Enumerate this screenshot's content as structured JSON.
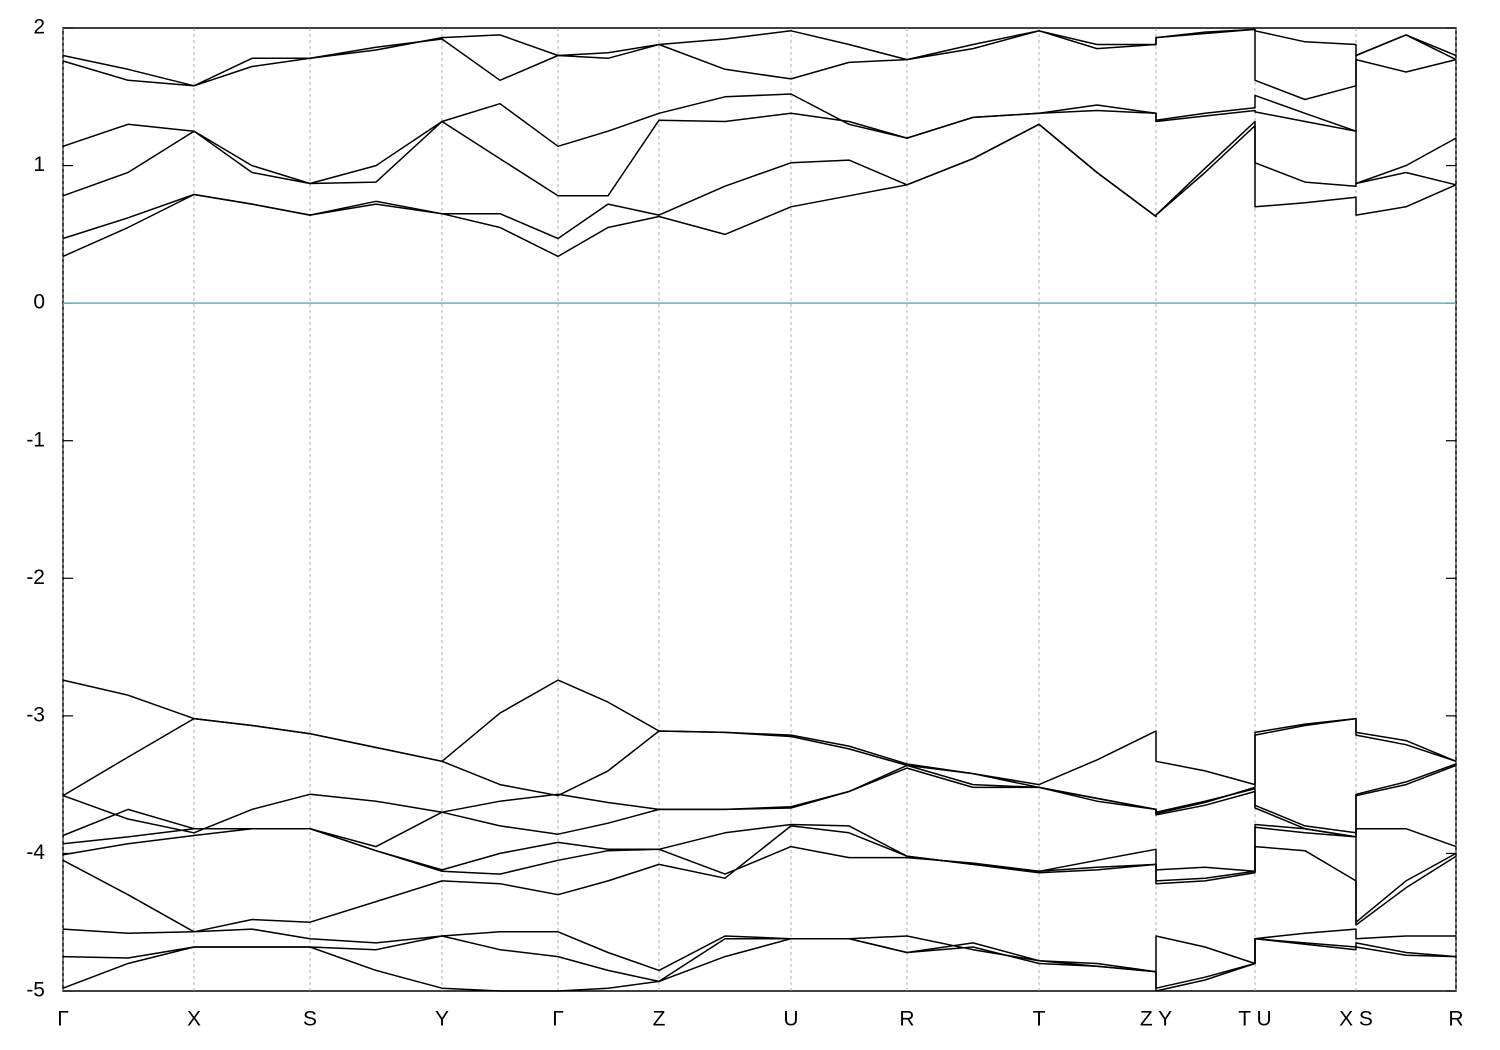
{
  "chart_data": {
    "type": "line",
    "x": [
      0,
      65,
      131,
      189,
      247,
      313,
      379,
      437,
      495,
      545,
      596,
      662,
      728,
      786,
      844,
      910,
      976,
      1034,
      1093,
      1093,
      1142,
      1192,
      1192,
      1242,
      1293,
      1293,
      1343,
      1393
    ],
    "xlim": [
      0,
      1393
    ],
    "xticks": [
      {
        "value": 0,
        "label": "Γ"
      },
      {
        "value": 131,
        "label": "X"
      },
      {
        "value": 247,
        "label": "S"
      },
      {
        "value": 379,
        "label": "Y"
      },
      {
        "value": 495,
        "label": "Γ"
      },
      {
        "value": 596,
        "label": "Z"
      },
      {
        "value": 728,
        "label": "U"
      },
      {
        "value": 844,
        "label": "R"
      },
      {
        "value": 976,
        "label": "T"
      },
      {
        "value": 1093,
        "label": "Z Y"
      },
      {
        "value": 1192,
        "label": "T U"
      },
      {
        "value": 1293,
        "label": "X S"
      },
      {
        "value": 1393,
        "label": "R"
      }
    ],
    "ylim": [
      -5,
      2
    ],
    "yticks": [
      -5,
      -4,
      -3,
      -2,
      -1,
      0,
      1,
      2
    ],
    "xgrid": true,
    "color": "#000000",
    "hlines": [
      {
        "value": 0,
        "color": "#5fb3c9"
      }
    ],
    "series": [
      {
        "values": [
          0.34,
          0.55,
          0.79,
          0.72,
          0.64,
          0.72,
          0.65,
          0.55,
          0.34,
          0.55,
          0.63,
          0.5,
          0.7,
          0.78,
          0.86,
          1.05,
          1.3,
          0.95,
          0.63,
          0.64,
          0.95,
          1.29,
          0.7,
          0.73,
          0.77,
          0.64,
          0.7,
          0.86
        ]
      },
      {
        "values": [
          0.47,
          0.62,
          0.79,
          0.72,
          0.64,
          0.74,
          0.65,
          0.65,
          0.47,
          0.72,
          0.64,
          0.85,
          1.02,
          1.04,
          0.86,
          1.05,
          1.3,
          0.95,
          0.63,
          0.64,
          0.98,
          1.32,
          1.02,
          0.88,
          0.85,
          0.87,
          0.95,
          0.86
        ]
      },
      {
        "values": [
          0.78,
          0.95,
          1.25,
          1.0,
          0.87,
          0.88,
          1.32,
          1.05,
          0.78,
          0.78,
          1.33,
          1.32,
          1.38,
          1.32,
          1.2,
          1.35,
          1.38,
          1.4,
          1.38,
          1.32,
          1.36,
          1.4,
          1.39,
          1.32,
          1.25,
          0.87,
          1.0,
          1.2
        ]
      },
      {
        "values": [
          1.14,
          1.3,
          1.25,
          0.95,
          0.87,
          1.0,
          1.32,
          1.45,
          1.14,
          1.25,
          1.38,
          1.5,
          1.52,
          1.3,
          1.2,
          1.35,
          1.38,
          1.44,
          1.38,
          1.33,
          1.38,
          1.42,
          1.51,
          1.38,
          1.25,
          1.77,
          1.68,
          1.77
        ]
      },
      {
        "values": [
          1.76,
          1.62,
          1.58,
          1.72,
          1.78,
          1.86,
          1.92,
          1.62,
          1.8,
          1.78,
          1.88,
          1.7,
          1.63,
          1.75,
          1.77,
          1.88,
          1.98,
          1.85,
          1.88,
          1.93,
          1.96,
          1.99,
          1.62,
          1.48,
          1.58,
          1.8,
          1.95,
          1.77
        ]
      },
      {
        "values": [
          1.8,
          1.7,
          1.58,
          1.78,
          1.78,
          1.84,
          1.93,
          1.95,
          1.8,
          1.82,
          1.88,
          1.92,
          1.98,
          1.88,
          1.77,
          1.85,
          1.98,
          1.88,
          1.88,
          1.93,
          1.97,
          1.99,
          1.98,
          1.9,
          1.88,
          1.8,
          1.95,
          1.8
        ]
      },
      {
        "values": [
          -2.74,
          -2.85,
          -3.02,
          -3.07,
          -3.13,
          -3.23,
          -3.33,
          -2.98,
          -2.74,
          -2.9,
          -3.11,
          -3.12,
          -3.14,
          -3.22,
          -3.35,
          -3.42,
          -3.5,
          -3.32,
          -3.11,
          -3.33,
          -3.4,
          -3.5,
          -3.12,
          -3.06,
          -3.02,
          -3.12,
          -3.18,
          -3.33
        ]
      },
      {
        "values": [
          -3.58,
          -3.3,
          -3.02,
          -3.07,
          -3.13,
          -3.23,
          -3.33,
          -3.5,
          -3.58,
          -3.4,
          -3.11,
          -3.12,
          -3.15,
          -3.24,
          -3.36,
          -3.42,
          -3.52,
          -3.6,
          -3.68,
          -3.71,
          -3.63,
          -3.52,
          -3.14,
          -3.07,
          -3.02,
          -3.14,
          -3.21,
          -3.33
        ]
      },
      {
        "values": [
          -3.58,
          -3.75,
          -3.85,
          -3.68,
          -3.57,
          -3.62,
          -3.7,
          -3.62,
          -3.57,
          -3.63,
          -3.68,
          -3.68,
          -3.67,
          -3.55,
          -3.36,
          -3.5,
          -3.52,
          -3.62,
          -3.68,
          -3.72,
          -3.65,
          -3.55,
          -3.65,
          -3.8,
          -3.85,
          -3.57,
          -3.48,
          -3.35
        ]
      },
      {
        "values": [
          -3.87,
          -3.68,
          -3.82,
          -3.82,
          -3.82,
          -3.95,
          -3.7,
          -3.8,
          -3.86,
          -3.78,
          -3.68,
          -3.68,
          -3.66,
          -3.55,
          -3.38,
          -3.52,
          -3.52,
          -3.6,
          -3.68,
          -3.7,
          -3.62,
          -3.53,
          -3.67,
          -3.82,
          -3.88,
          -3.58,
          -3.5,
          -3.36
        ]
      },
      {
        "values": [
          -3.93,
          -3.88,
          -3.82,
          -3.82,
          -3.82,
          -3.98,
          -4.12,
          -4.0,
          -3.92,
          -3.97,
          -3.97,
          -3.85,
          -3.79,
          -3.8,
          -4.02,
          -4.08,
          -4.13,
          -4.1,
          -4.08,
          -4.12,
          -4.1,
          -4.13,
          -3.79,
          -3.82,
          -3.88,
          -3.82,
          -3.82,
          -3.95
        ]
      },
      {
        "values": [
          -4.01,
          -3.93,
          -3.87,
          -3.82,
          -3.82,
          -3.98,
          -4.13,
          -4.15,
          -4.05,
          -3.98,
          -3.97,
          -4.15,
          -3.95,
          -4.03,
          -4.03,
          -4.07,
          -4.13,
          -4.05,
          -3.97,
          -4.2,
          -4.18,
          -4.13,
          -3.95,
          -3.98,
          -4.2,
          -4.5,
          -4.2,
          -4.0
        ]
      },
      {
        "values": [
          -4.05,
          -4.3,
          -4.57,
          -4.48,
          -4.5,
          -4.35,
          -4.2,
          -4.22,
          -4.3,
          -4.2,
          -4.08,
          -4.18,
          -3.8,
          -3.85,
          -4.02,
          -4.08,
          -4.14,
          -4.12,
          -4.08,
          -4.22,
          -4.2,
          -4.14,
          -3.81,
          -3.85,
          -3.88,
          -4.52,
          -4.25,
          -4.02
        ]
      },
      {
        "values": [
          -4.55,
          -4.58,
          -4.57,
          -4.55,
          -4.62,
          -4.65,
          -4.6,
          -4.57,
          -4.57,
          -4.72,
          -4.85,
          -4.6,
          -4.62,
          -4.62,
          -4.6,
          -4.7,
          -4.78,
          -4.82,
          -4.86,
          -4.6,
          -4.68,
          -4.8,
          -4.62,
          -4.58,
          -4.55,
          -4.62,
          -4.6,
          -4.6
        ]
      },
      {
        "values": [
          -4.75,
          -4.76,
          -4.68,
          -4.68,
          -4.68,
          -4.7,
          -4.6,
          -4.7,
          -4.75,
          -4.85,
          -4.93,
          -4.62,
          -4.62,
          -4.62,
          -4.72,
          -4.65,
          -4.78,
          -4.8,
          -4.86,
          -4.98,
          -4.9,
          -4.8,
          -4.62,
          -4.65,
          -4.68,
          -4.65,
          -4.72,
          -4.75
        ]
      },
      {
        "values": [
          -4.98,
          -4.8,
          -4.68,
          -4.68,
          -4.68,
          -4.85,
          -4.98,
          -5.0,
          -5.0,
          -4.98,
          -4.93,
          -4.75,
          -4.62,
          -4.62,
          -4.72,
          -4.68,
          -4.8,
          -4.82,
          -4.86,
          -5.0,
          -4.92,
          -4.8,
          -4.62,
          -4.66,
          -4.7,
          -4.68,
          -4.74,
          -4.75
        ]
      }
    ]
  }
}
